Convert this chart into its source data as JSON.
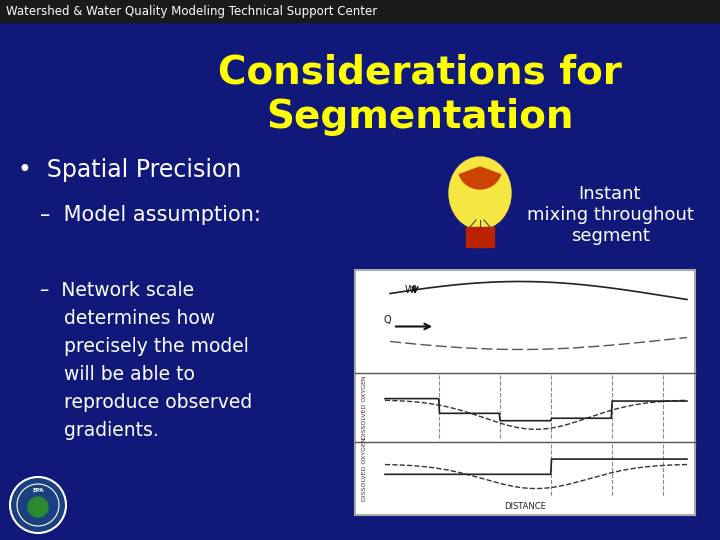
{
  "bg_color": "#10197a",
  "header_bg": "#1a1a1a",
  "header_text": "Watershed & Water Quality Modeling Technical Support Center",
  "header_text_color": "#ffffff",
  "header_fontsize": 8.5,
  "title_text": "Considerations for\nSegmentation",
  "title_color": "#ffff00",
  "title_fontsize": 28,
  "bullet_text": "•  Spatial Precision",
  "bullet_color": "#ffffff",
  "bullet_fontsize": 17,
  "sub1_text": "–  Model assumption:",
  "sub1_color": "#ffffff",
  "sub1_fontsize": 15,
  "instant_text": "Instant\nmixing throughout\nsegment",
  "instant_color": "#ffffff",
  "instant_fontsize": 13,
  "sub2_text": "–  Network scale\n    determines how\n    precisely the model\n    will be able to\n    reproduce observed\n    gradients.",
  "sub2_color": "#ffffff",
  "sub2_fontsize": 13.5,
  "graph_facecolor": "#f0f0f0",
  "graph_border": "#999999"
}
